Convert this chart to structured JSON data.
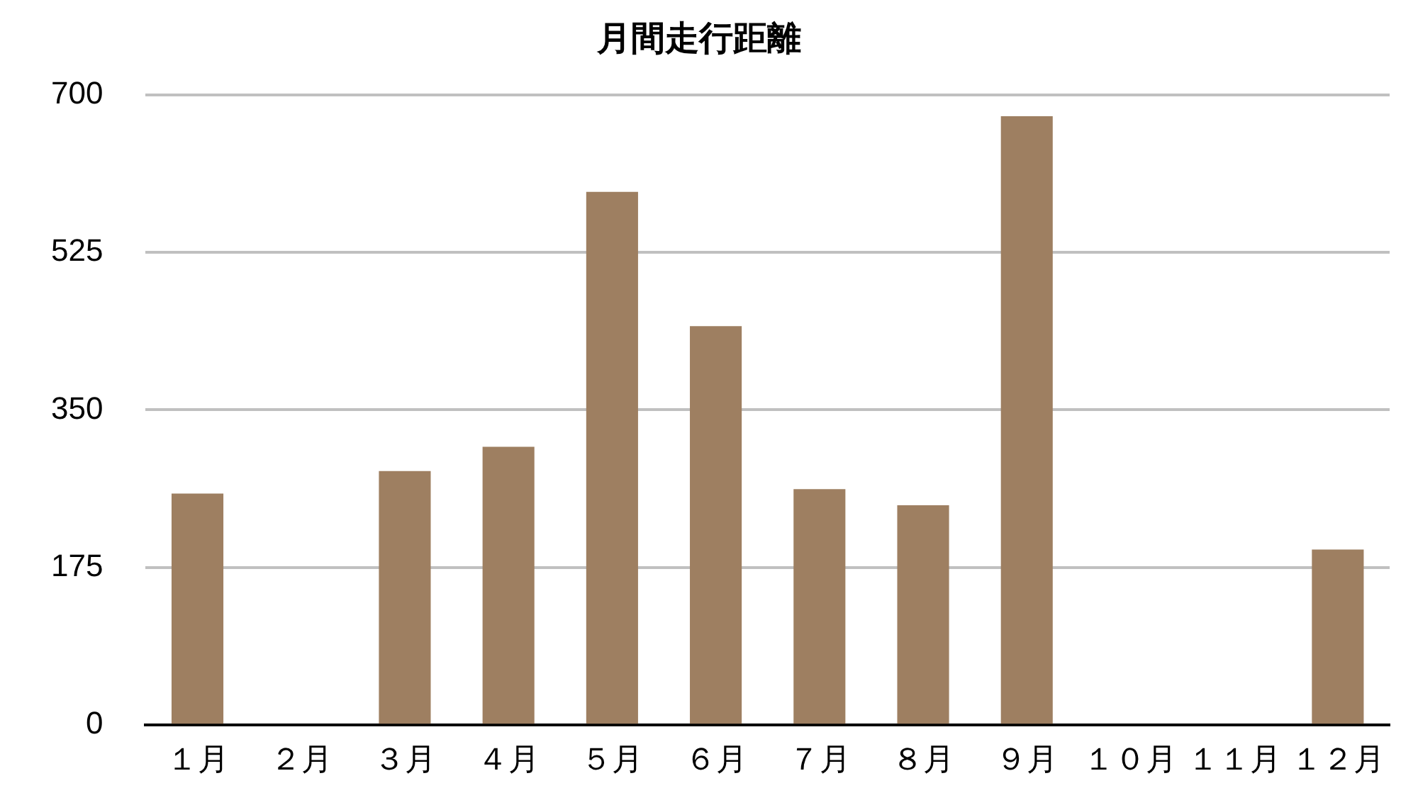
{
  "chart_data": {
    "type": "bar",
    "title": "月間走行距離",
    "categories": [
      "１月",
      "２月",
      "３月",
      "４月",
      "５月",
      "６月",
      "７月",
      "８月",
      "９月",
      "１０月",
      "１１月",
      "１２月"
    ],
    "values": [
      257,
      0,
      282,
      309,
      592,
      443,
      262,
      244,
      676,
      0,
      0,
      195
    ],
    "color": "#9e7f61",
    "ylim": [
      0,
      700
    ],
    "yticks": [
      0,
      175,
      350,
      525,
      700
    ],
    "grid": "y",
    "legend": false
  }
}
